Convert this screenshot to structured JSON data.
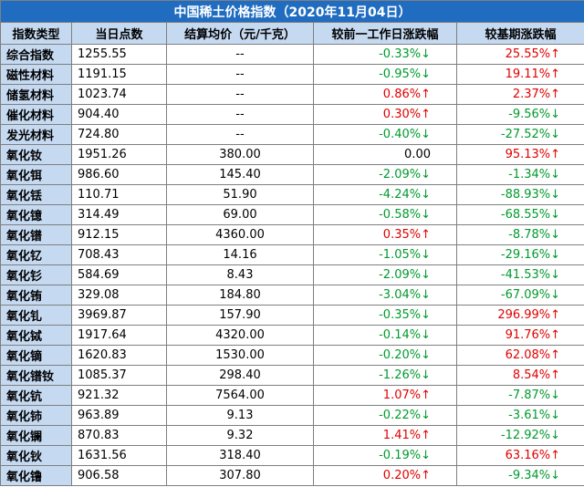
{
  "table": {
    "title": "中国稀土价格指数（2020年11月04日）",
    "header": [
      "指数类型",
      "当日点数",
      "结算均价（元/千克）",
      "较前一工作日涨跌幅",
      "较基期涨跌幅"
    ],
    "rows": [
      [
        "综合指数",
        "1255.55",
        "--",
        "-0.33%↓",
        "25.55%↑"
      ],
      [
        "磁性材料",
        "1191.15",
        "--",
        "-0.95%↓",
        "19.11%↑"
      ],
      [
        "储氢材料",
        "1023.74",
        "--",
        "0.86%↑",
        "2.37%↑"
      ],
      [
        "催化材料",
        "904.40",
        "--",
        "0.30%↑",
        "-9.56%↓"
      ],
      [
        "发光材料",
        "724.80",
        "--",
        "-0.40%↓",
        "-27.52%↓"
      ],
      [
        "氧化钕",
        "1951.26",
        "380.00",
        "0.00",
        "95.13%↑"
      ],
      [
        "氧化铒",
        "986.60",
        "145.40",
        "-2.09%↓",
        "-1.34%↓"
      ],
      [
        "氧化铥",
        "110.71",
        "51.90",
        "-4.24%↓",
        "-88.93%↓"
      ],
      [
        "氧化镱",
        "314.49",
        "69.00",
        "-0.58%↓",
        "-68.55%↓"
      ],
      [
        "氧化镨",
        "912.15",
        "4360.00",
        "0.35%↑",
        "-8.78%↓"
      ],
      [
        "氧化钇",
        "708.43",
        "14.16",
        "-1.05%↓",
        "-29.16%↓"
      ],
      [
        "氧化钐",
        "584.69",
        "8.43",
        "-2.09%↓",
        "-41.53%↓"
      ],
      [
        "氧化铕",
        "329.08",
        "184.80",
        "-3.04%↓",
        "-67.09%↓"
      ],
      [
        "氧化钆",
        "3969.87",
        "157.90",
        "-0.35%↓",
        "296.99%↑"
      ],
      [
        "氧化铽",
        "1917.64",
        "4320.00",
        "-0.14%↓",
        "91.76%↑"
      ],
      [
        "氧化镝",
        "1620.83",
        "1530.00",
        "-0.20%↓",
        "62.08%↑"
      ],
      [
        "氧化镨钕",
        "1085.37",
        "298.40",
        "-1.26%↓",
        "8.54%↑"
      ],
      [
        "氧化钪",
        "921.32",
        "7564.00",
        "1.07%↑",
        "-7.87%↓"
      ],
      [
        "氧化铈",
        "963.89",
        "9.13",
        "-0.22%↓",
        "-3.61%↓"
      ],
      [
        "氧化镧",
        "870.83",
        "9.32",
        "1.41%↑",
        "-12.92%↓"
      ],
      [
        "氧化钬",
        "1631.56",
        "318.40",
        "-0.19%↓",
        "63.16%↑"
      ],
      [
        "氧化镥",
        "906.58",
        "307.80",
        "0.20%↑",
        "-9.34%↓"
      ]
    ]
  }
}
